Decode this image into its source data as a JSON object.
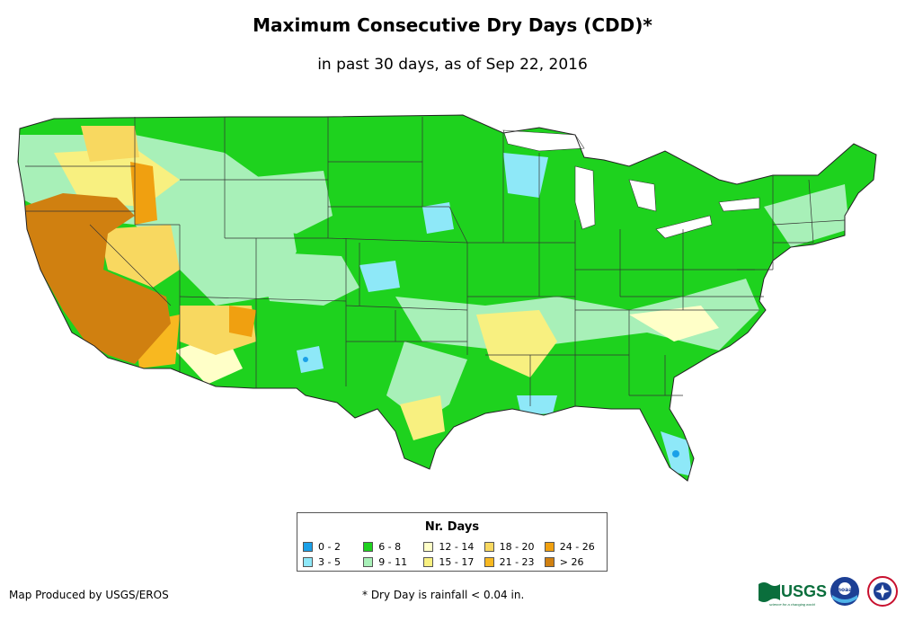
{
  "header": {
    "title": "Maximum Consecutive Dry Days (CDD)*",
    "subtitle": "in past 30 days, as of Sep 22, 2016"
  },
  "legend": {
    "title": "Nr. Days",
    "items": [
      {
        "label": "0 - 2",
        "color": "#1aa0e8"
      },
      {
        "label": "6 - 8",
        "color": "#1ed21e"
      },
      {
        "label": "12 - 14",
        "color": "#ffffc8"
      },
      {
        "label": "18 - 20",
        "color": "#f8d860"
      },
      {
        "label": "24 - 26",
        "color": "#f0a010"
      },
      {
        "label": "3 - 5",
        "color": "#8ee8f8"
      },
      {
        "label": "9 - 11",
        "color": "#a8f0b8"
      },
      {
        "label": "15 - 17",
        "color": "#f8f080"
      },
      {
        "label": "21 - 23",
        "color": "#f8b820"
      },
      {
        "label": "> 26",
        "color": "#d08010"
      }
    ]
  },
  "footer": {
    "credit": "Map Produced by USGS/EROS",
    "note": "* Dry Day is rainfall < 0.04 in."
  },
  "logos": {
    "usgs": "USGS",
    "usgs_tagline": "science for a changing world",
    "noaa": "noaa"
  }
}
